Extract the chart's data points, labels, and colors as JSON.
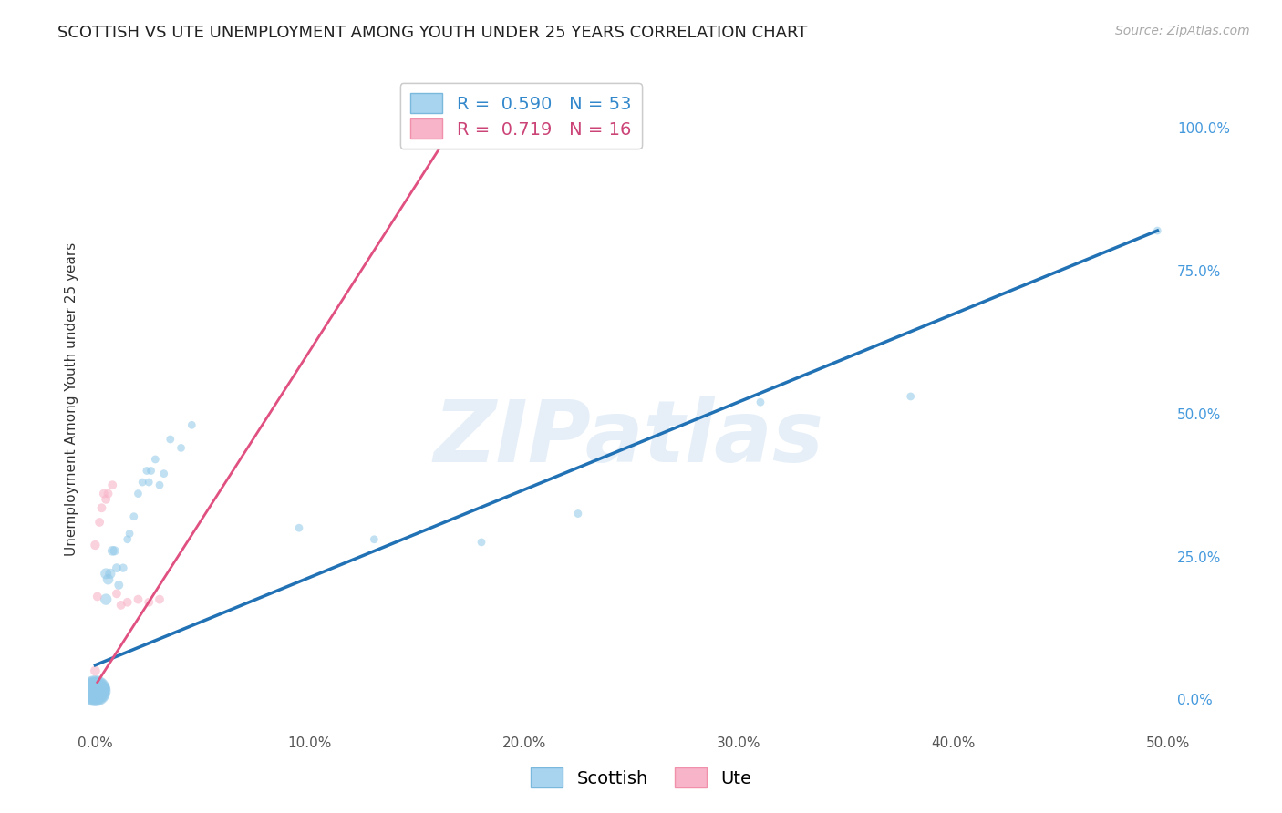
{
  "title": "SCOTTISH VS UTE UNEMPLOYMENT AMONG YOUTH UNDER 25 YEARS CORRELATION CHART",
  "source": "Source: ZipAtlas.com",
  "ylabel": "Unemployment Among Youth under 25 years",
  "xlim": [
    0.0,
    0.5
  ],
  "ylim": [
    -0.05,
    1.1
  ],
  "yticks": [
    0.0,
    0.25,
    0.5,
    0.75,
    1.0
  ],
  "ytick_labels": [
    "0.0%",
    "25.0%",
    "50.0%",
    "75.0%",
    "100.0%"
  ],
  "xticks": [
    0.0,
    0.1,
    0.2,
    0.3,
    0.4,
    0.5
  ],
  "xtick_labels": [
    "0.0%",
    "10.0%",
    "20.0%",
    "30.0%",
    "40.0%",
    "50.0%"
  ],
  "watermark": "ZIPatlas",
  "scatter_blue": {
    "label": "Scottish",
    "color": "#8fc8e8",
    "edgecolor": "#7ab8dc",
    "alpha": 0.55,
    "R": 0.59,
    "N": 53,
    "x": [
      0.0,
      0.0,
      0.0,
      0.0,
      0.0,
      0.0,
      0.0,
      0.0,
      0.0,
      0.0,
      0.001,
      0.001,
      0.001,
      0.001,
      0.001,
      0.002,
      0.002,
      0.002,
      0.003,
      0.003,
      0.003,
      0.004,
      0.004,
      0.005,
      0.005,
      0.006,
      0.007,
      0.008,
      0.009,
      0.01,
      0.011,
      0.013,
      0.015,
      0.016,
      0.018,
      0.02,
      0.022,
      0.024,
      0.025,
      0.026,
      0.028,
      0.03,
      0.032,
      0.035,
      0.04,
      0.045,
      0.095,
      0.13,
      0.18,
      0.225,
      0.31,
      0.38,
      0.495
    ],
    "y": [
      0.015,
      0.015,
      0.015,
      0.015,
      0.015,
      0.015,
      0.015,
      0.015,
      0.02,
      0.02,
      0.015,
      0.015,
      0.015,
      0.015,
      0.02,
      0.015,
      0.015,
      0.02,
      0.015,
      0.018,
      0.02,
      0.018,
      0.02,
      0.175,
      0.22,
      0.21,
      0.22,
      0.26,
      0.26,
      0.23,
      0.2,
      0.23,
      0.28,
      0.29,
      0.32,
      0.36,
      0.38,
      0.4,
      0.38,
      0.4,
      0.42,
      0.375,
      0.395,
      0.455,
      0.44,
      0.48,
      0.3,
      0.28,
      0.275,
      0.325,
      0.52,
      0.53,
      0.82
    ],
    "sizes": [
      600,
      550,
      500,
      450,
      400,
      380,
      360,
      320,
      280,
      260,
      240,
      220,
      200,
      180,
      160,
      150,
      140,
      130,
      120,
      110,
      100,
      100,
      90,
      80,
      75,
      70,
      65,
      60,
      55,
      50,
      50,
      45,
      40,
      40,
      40,
      40,
      40,
      40,
      40,
      40,
      40,
      40,
      40,
      40,
      40,
      40,
      40,
      40,
      40,
      40,
      40,
      40,
      40
    ]
  },
  "scatter_pink": {
    "label": "Ute",
    "color": "#f8b4c8",
    "edgecolor": "#f090aa",
    "alpha": 0.6,
    "R": 0.719,
    "N": 16,
    "x": [
      0.0,
      0.0,
      0.001,
      0.002,
      0.003,
      0.004,
      0.005,
      0.006,
      0.008,
      0.01,
      0.012,
      0.015,
      0.02,
      0.025,
      0.03,
      0.17
    ],
    "y": [
      0.05,
      0.27,
      0.18,
      0.31,
      0.335,
      0.36,
      0.35,
      0.36,
      0.375,
      0.185,
      0.165,
      0.17,
      0.175,
      0.17,
      0.175,
      0.975
    ],
    "sizes": [
      60,
      55,
      50,
      50,
      50,
      50,
      50,
      50,
      50,
      50,
      50,
      50,
      50,
      50,
      50,
      50
    ]
  },
  "line_blue": {
    "color": "#2171b5",
    "linewidth": 2.5,
    "x0": 0.0,
    "x1": 0.495,
    "y0": 0.06,
    "y1": 0.82
  },
  "line_pink": {
    "color": "#e05080",
    "linewidth": 2.0,
    "x0": 0.001,
    "x1": 0.17,
    "y0": 0.03,
    "y1": 1.02
  },
  "title_fontsize": 13,
  "axis_label_fontsize": 11,
  "tick_fontsize": 11,
  "legend_fontsize": 14,
  "source_fontsize": 10,
  "background_color": "white",
  "grid_color": "#cccccc",
  "grid_linestyle": "--",
  "grid_alpha": 0.8
}
